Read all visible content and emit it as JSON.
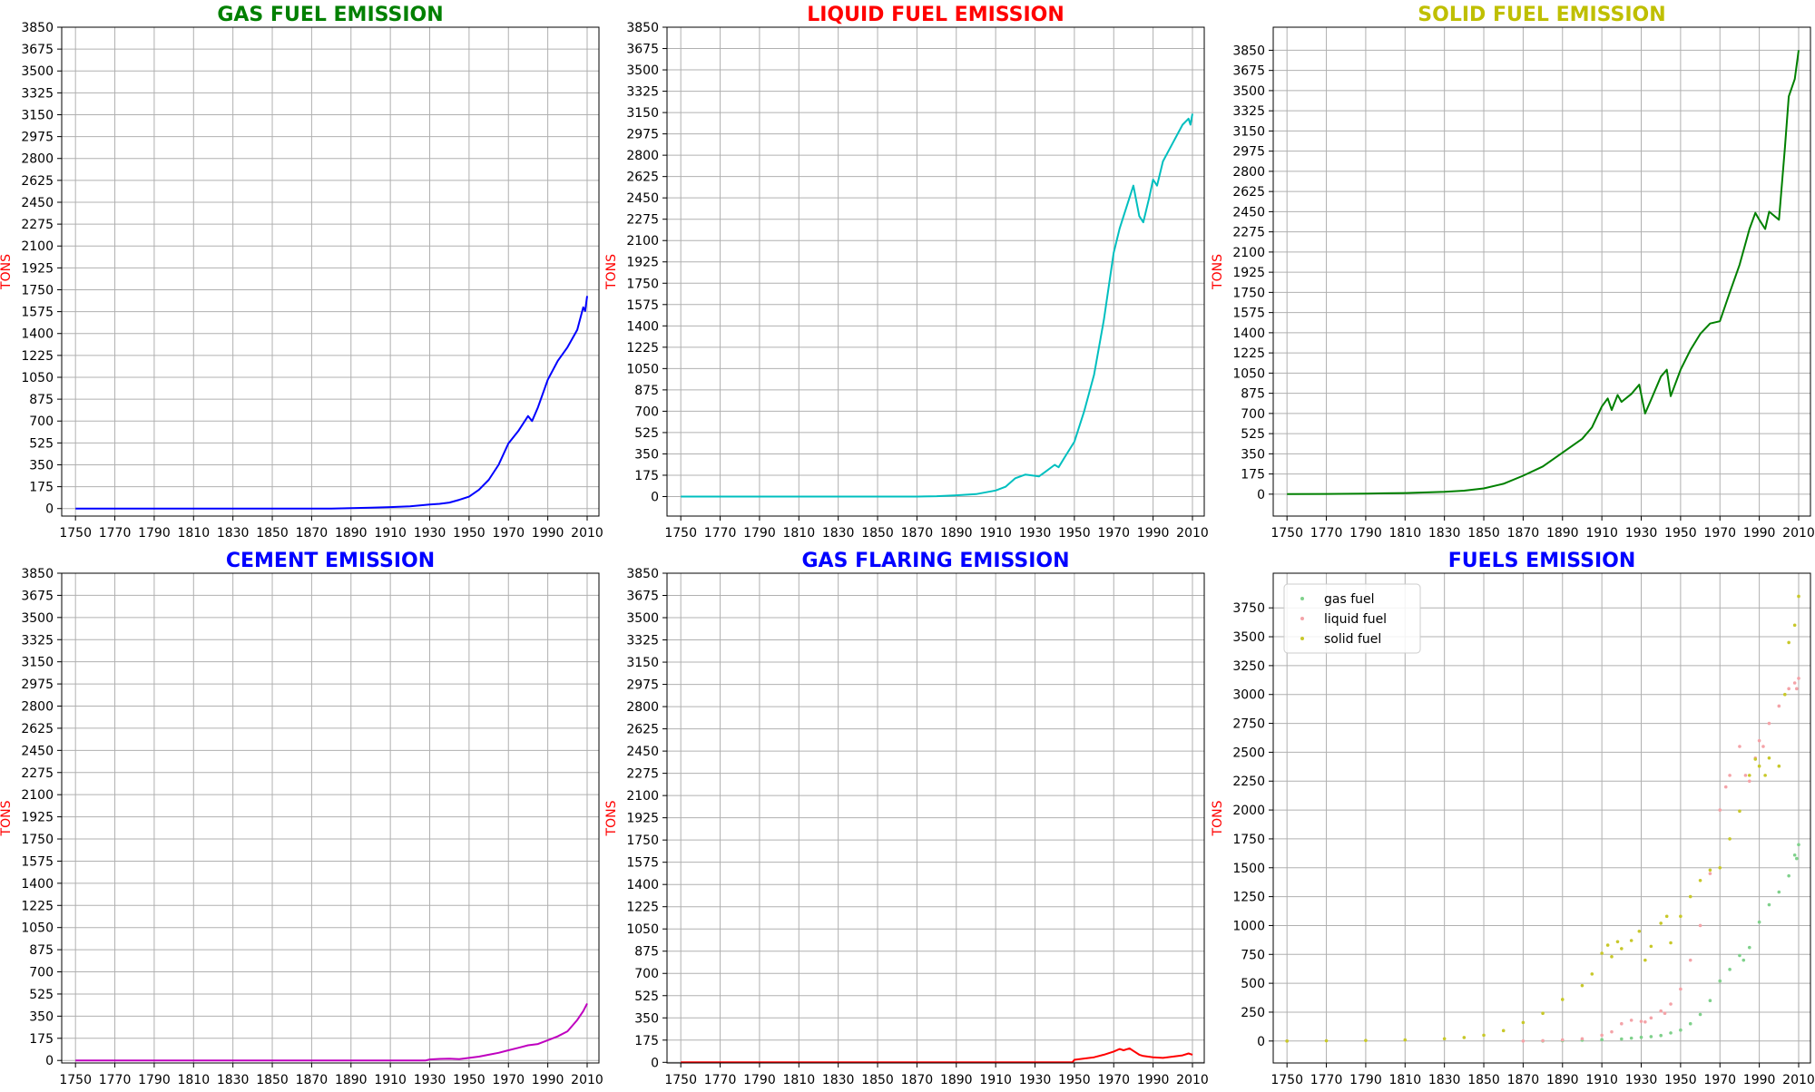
{
  "chart_data": [
    {
      "type": "line",
      "title": "GAS FUEL EMISSION",
      "title_color": "#008000",
      "xlabel": "",
      "ylabel": "TONS",
      "ylabel_color": "#ff0000",
      "xlim": [
        1743,
        2016
      ],
      "ylim": [
        -60,
        3850
      ],
      "xticks": [
        1750,
        1770,
        1790,
        1810,
        1830,
        1850,
        1870,
        1890,
        1910,
        1930,
        1950,
        1970,
        1990,
        2010
      ],
      "yticks": [
        0,
        175,
        350,
        525,
        700,
        875,
        1050,
        1225,
        1400,
        1575,
        1750,
        1925,
        2100,
        2275,
        2450,
        2625,
        2800,
        2975,
        3150,
        3325,
        3500,
        3675,
        3850
      ],
      "grid": true,
      "series": [
        {
          "color": "#0000ff",
          "style": "line",
          "x": [
            1750,
            1880,
            1890,
            1900,
            1910,
            1920,
            1925,
            1930,
            1935,
            1940,
            1945,
            1950,
            1955,
            1960,
            1965,
            1970,
            1975,
            1980,
            1982,
            1985,
            1990,
            1995,
            2000,
            2005,
            2008,
            2009,
            2010
          ],
          "y": [
            0,
            0,
            3,
            7,
            12,
            18,
            25,
            32,
            38,
            48,
            70,
            95,
            150,
            230,
            350,
            520,
            620,
            740,
            700,
            810,
            1030,
            1180,
            1290,
            1430,
            1610,
            1580,
            1700
          ]
        }
      ]
    },
    {
      "type": "line",
      "title": "LIQUID FUEL EMISSION",
      "title_color": "#ff0000",
      "xlabel": "",
      "ylabel": "TONS",
      "ylabel_color": "#ff0000",
      "xlim": [
        1743,
        2016
      ],
      "ylim": [
        -160,
        3850
      ],
      "xticks": [
        1750,
        1770,
        1790,
        1810,
        1830,
        1850,
        1870,
        1890,
        1910,
        1930,
        1950,
        1970,
        1990,
        2010
      ],
      "yticks": [
        0,
        175,
        350,
        525,
        700,
        875,
        1050,
        1225,
        1400,
        1575,
        1750,
        1925,
        2100,
        2275,
        2450,
        2625,
        2800,
        2975,
        3150,
        3325,
        3500,
        3675,
        3850
      ],
      "grid": true,
      "series": [
        {
          "color": "#00bfbf",
          "style": "line",
          "x": [
            1750,
            1870,
            1880,
            1890,
            1900,
            1910,
            1915,
            1920,
            1925,
            1930,
            1932,
            1935,
            1940,
            1942,
            1945,
            1950,
            1955,
            1960,
            1965,
            1970,
            1973,
            1975,
            1980,
            1983,
            1985,
            1988,
            1990,
            1992,
            1995,
            2000,
            2005,
            2008,
            2009,
            2010
          ],
          "y": [
            0,
            0,
            3,
            10,
            20,
            50,
            80,
            150,
            180,
            170,
            165,
            200,
            260,
            240,
            320,
            450,
            700,
            1000,
            1450,
            2000,
            2200,
            2300,
            2550,
            2300,
            2250,
            2450,
            2600,
            2550,
            2750,
            2900,
            3050,
            3100,
            3050,
            3140
          ]
        }
      ]
    },
    {
      "type": "line",
      "title": "SOLID FUEL EMISSION",
      "title_color": "#bfbf00",
      "xlabel": "",
      "ylabel": "TONS",
      "ylabel_color": "#ff0000",
      "xlim": [
        1743,
        2016
      ],
      "ylim": [
        -190,
        4050
      ],
      "xticks": [
        1750,
        1770,
        1790,
        1810,
        1830,
        1850,
        1870,
        1890,
        1910,
        1930,
        1950,
        1970,
        1990,
        2010
      ],
      "yticks": [
        0,
        175,
        350,
        525,
        700,
        875,
        1050,
        1225,
        1400,
        1575,
        1750,
        1925,
        2100,
        2275,
        2450,
        2625,
        2800,
        2975,
        3150,
        3325,
        3500,
        3675,
        3850
      ],
      "grid": true,
      "series": [
        {
          "color": "#008000",
          "style": "line",
          "x": [
            1750,
            1770,
            1790,
            1810,
            1830,
            1840,
            1850,
            1860,
            1870,
            1880,
            1890,
            1900,
            1905,
            1910,
            1913,
            1915,
            1918,
            1920,
            1925,
            1929,
            1932,
            1935,
            1940,
            1943,
            1945,
            1950,
            1955,
            1960,
            1965,
            1970,
            1975,
            1980,
            1985,
            1988,
            1990,
            1993,
            1995,
            2000,
            2003,
            2005,
            2008,
            2010
          ],
          "y": [
            0,
            2,
            5,
            10,
            20,
            30,
            50,
            90,
            160,
            240,
            360,
            480,
            580,
            760,
            830,
            730,
            860,
            800,
            870,
            950,
            700,
            820,
            1020,
            1080,
            850,
            1080,
            1250,
            1390,
            1480,
            1500,
            1750,
            1990,
            2300,
            2440,
            2380,
            2300,
            2450,
            2380,
            3000,
            3450,
            3600,
            3850
          ]
        }
      ]
    },
    {
      "type": "line",
      "title": "CEMENT EMISSION",
      "title_color": "#0000ff",
      "xlabel": "",
      "ylabel": "TONS",
      "ylabel_color": "#ff0000",
      "xlim": [
        1743,
        2016
      ],
      "ylim": [
        -20,
        3850
      ],
      "xticks": [
        1750,
        1770,
        1790,
        1810,
        1830,
        1850,
        1870,
        1890,
        1910,
        1930,
        1950,
        1970,
        1990,
        2010
      ],
      "yticks": [
        0,
        175,
        350,
        525,
        700,
        875,
        1050,
        1225,
        1400,
        1575,
        1750,
        1925,
        2100,
        2275,
        2450,
        2625,
        2800,
        2975,
        3150,
        3325,
        3500,
        3675,
        3850
      ],
      "grid": true,
      "series": [
        {
          "color": "#bf00bf",
          "style": "line",
          "x": [
            1750,
            1928,
            1930,
            1935,
            1940,
            1945,
            1950,
            1955,
            1960,
            1965,
            1970,
            1975,
            1980,
            1985,
            1990,
            1995,
            2000,
            2005,
            2008,
            2010
          ],
          "y": [
            0,
            0,
            8,
            12,
            14,
            10,
            20,
            30,
            45,
            60,
            80,
            100,
            120,
            130,
            160,
            190,
            230,
            320,
            390,
            450
          ]
        }
      ]
    },
    {
      "type": "line",
      "title": "GAS FLARING EMISSION",
      "title_color": "#0000ff",
      "xlabel": "",
      "ylabel": "TONS",
      "ylabel_color": "#ff0000",
      "xlim": [
        1743,
        2016
      ],
      "ylim": [
        -5,
        3850
      ],
      "xticks": [
        1750,
        1770,
        1790,
        1810,
        1830,
        1850,
        1870,
        1890,
        1910,
        1930,
        1950,
        1970,
        1990,
        2010
      ],
      "yticks": [
        0,
        175,
        350,
        525,
        700,
        875,
        1050,
        1225,
        1400,
        1575,
        1750,
        1925,
        2100,
        2275,
        2450,
        2625,
        2800,
        2975,
        3150,
        3325,
        3500,
        3675,
        3850
      ],
      "grid": true,
      "series": [
        {
          "color": "#ff0000",
          "style": "line",
          "x": [
            1750,
            1949,
            1950,
            1955,
            1960,
            1965,
            1970,
            1973,
            1975,
            1978,
            1980,
            1983,
            1985,
            1990,
            1995,
            2000,
            2005,
            2008,
            2010
          ],
          "y": [
            0,
            0,
            20,
            30,
            40,
            60,
            85,
            105,
            95,
            110,
            90,
            60,
            50,
            40,
            35,
            45,
            55,
            70,
            60
          ]
        }
      ]
    },
    {
      "type": "scatter",
      "title": "FUELS EMISSION",
      "title_color": "#0000ff",
      "xlabel": "",
      "ylabel": "TONS",
      "ylabel_color": "#ff0000",
      "xlim": [
        1743,
        2016
      ],
      "ylim": [
        -190,
        4050
      ],
      "xticks": [
        1750,
        1770,
        1790,
        1810,
        1830,
        1850,
        1870,
        1890,
        1910,
        1930,
        1950,
        1970,
        1990,
        2010
      ],
      "yticks": [
        0,
        250,
        500,
        750,
        1000,
        1250,
        1500,
        1750,
        2000,
        2250,
        2500,
        2750,
        3000,
        3250,
        3500,
        3750
      ],
      "grid": true,
      "legend": "top-left",
      "series": [
        {
          "name": "gas fuel",
          "color": "#7fd18b",
          "style": "scatter",
          "x": [
            1750,
            1880,
            1890,
            1900,
            1910,
            1920,
            1925,
            1930,
            1935,
            1940,
            1945,
            1950,
            1955,
            1960,
            1965,
            1970,
            1975,
            1980,
            1982,
            1985,
            1990,
            1995,
            2000,
            2005,
            2008,
            2009,
            2010
          ],
          "y": [
            0,
            0,
            3,
            7,
            12,
            18,
            25,
            32,
            38,
            48,
            70,
            95,
            150,
            230,
            350,
            520,
            620,
            740,
            700,
            810,
            1030,
            1180,
            1290,
            1430,
            1610,
            1580,
            1700
          ]
        },
        {
          "name": "liquid fuel",
          "color": "#f4a3a8",
          "style": "scatter",
          "x": [
            1750,
            1870,
            1880,
            1890,
            1900,
            1910,
            1915,
            1920,
            1925,
            1930,
            1932,
            1935,
            1940,
            1942,
            1945,
            1950,
            1955,
            1960,
            1965,
            1970,
            1973,
            1975,
            1980,
            1983,
            1985,
            1988,
            1990,
            1992,
            1995,
            2000,
            2005,
            2008,
            2009,
            2010
          ],
          "y": [
            0,
            0,
            3,
            10,
            20,
            50,
            80,
            150,
            180,
            170,
            165,
            200,
            260,
            240,
            320,
            450,
            700,
            1000,
            1450,
            2000,
            2200,
            2300,
            2550,
            2300,
            2250,
            2450,
            2600,
            2550,
            2750,
            2900,
            3050,
            3100,
            3050,
            3140
          ]
        },
        {
          "name": "solid fuel",
          "color": "#c8c82a",
          "style": "scatter",
          "x": [
            1750,
            1770,
            1790,
            1810,
            1830,
            1840,
            1850,
            1860,
            1870,
            1880,
            1890,
            1900,
            1905,
            1910,
            1913,
            1915,
            1918,
            1920,
            1925,
            1929,
            1932,
            1935,
            1940,
            1943,
            1945,
            1950,
            1955,
            1960,
            1965,
            1970,
            1975,
            1980,
            1985,
            1988,
            1990,
            1993,
            1995,
            2000,
            2003,
            2005,
            2008,
            2010
          ],
          "y": [
            0,
            2,
            5,
            10,
            20,
            30,
            50,
            90,
            160,
            240,
            360,
            480,
            580,
            760,
            830,
            730,
            860,
            800,
            870,
            950,
            700,
            820,
            1020,
            1080,
            850,
            1080,
            1250,
            1390,
            1480,
            1500,
            1750,
            1990,
            2300,
            2440,
            2380,
            2300,
            2450,
            2380,
            3000,
            3450,
            3600,
            3850
          ]
        }
      ]
    }
  ]
}
